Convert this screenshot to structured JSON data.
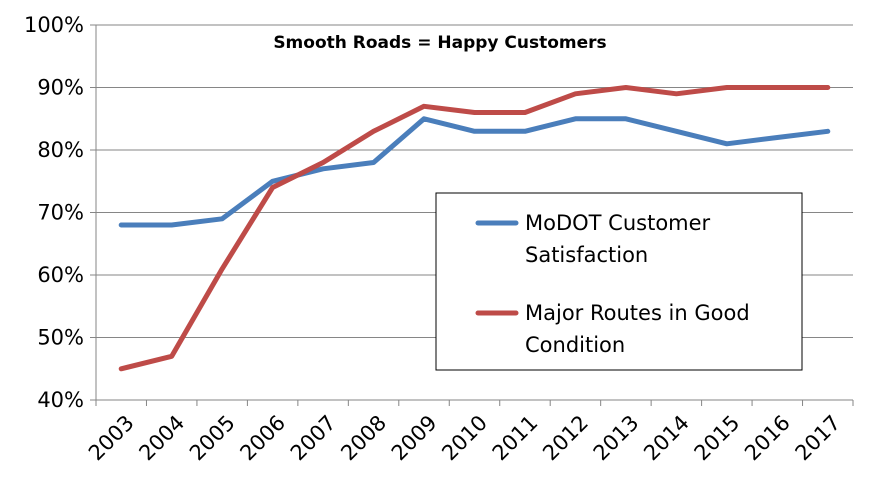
{
  "chart_data": {
    "type": "line",
    "title": "Smooth Roads = Happy Customers",
    "xlabel": "",
    "ylabel": "",
    "categories": [
      "2003",
      "2004",
      "2005",
      "2006",
      "2007",
      "2008",
      "2009",
      "2010",
      "2011",
      "2012",
      "2013",
      "2014",
      "2015",
      "2016",
      "2017"
    ],
    "ylim": [
      40,
      100
    ],
    "yticks": [
      "40%",
      "50%",
      "60%",
      "70%",
      "80%",
      "90%",
      "100%"
    ],
    "grid": true,
    "legend_position": "right",
    "series": [
      {
        "name": "MoDOT Customer Satisfaction",
        "color": "#4a7ebb",
        "values": [
          68,
          68,
          69,
          75,
          77,
          78,
          85,
          83,
          83,
          85,
          85,
          83,
          81,
          82,
          83
        ]
      },
      {
        "name": "Major Routes in Good Condition",
        "color": "#be4b48",
        "values": [
          45,
          47,
          61,
          74,
          78,
          83,
          87,
          86,
          86,
          89,
          90,
          89,
          90,
          90,
          90
        ]
      }
    ],
    "legend_lines": [
      [
        "MoDOT Customer",
        "Satisfaction"
      ],
      [
        "Major Routes in Good",
        "Condition"
      ]
    ]
  }
}
